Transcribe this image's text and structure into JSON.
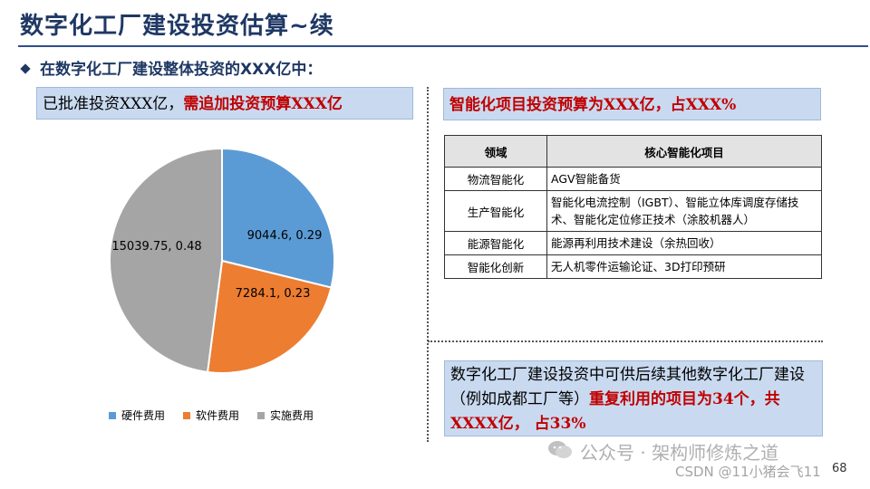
{
  "title": "数字化工厂建设投资估算~续",
  "subtitle": "在数字化工厂建设整体投资的XXX亿中：",
  "left_box": {
    "normal": "已批准投资XXX亿，",
    "highlight": "需追加投资预算XXX亿"
  },
  "right_box": {
    "text": "智能化项目投资预算为XXX亿，占XXX%"
  },
  "table": {
    "headers": [
      "领域",
      "核心智能化项目"
    ],
    "rows": [
      [
        "物流智能化",
        "AGV智能备货"
      ],
      [
        "生产智能化",
        "智能化电流控制（IGBT）、智能立体库调度存储技术、智能化定位修正技术（涂胶机器人）"
      ],
      [
        "能源智能化",
        "能源再利用技术建设（余热回收）"
      ],
      [
        "智能化创新",
        "无人机零件运输论证、3D打印预研"
      ]
    ]
  },
  "bottom_box": {
    "normal": "数字化工厂建设投资中可供后续其他数字化工厂建设（例如成都工厂等）",
    "highlight": "重复利用的项目为34个，共XXXX亿， 占33%"
  },
  "chart_data": {
    "type": "pie",
    "categories": [
      "硬件费用",
      "软件费用",
      "实施费用"
    ],
    "values": [
      9044.6,
      7284.1,
      15039.75
    ],
    "shares": [
      0.29,
      0.23,
      0.48
    ],
    "data_labels": [
      "9044.6, 0.29",
      "7284.1, 0.23",
      "15039.75, 0.48"
    ],
    "colors": [
      "#5b9bd5",
      "#ed7d31",
      "#a5a5a5"
    ],
    "legend_position": "bottom"
  },
  "watermark": {
    "text": "公众号 · 架构师修炼之道",
    "csdn": "CSDN @11小猪会飞11"
  },
  "page_number": "68"
}
